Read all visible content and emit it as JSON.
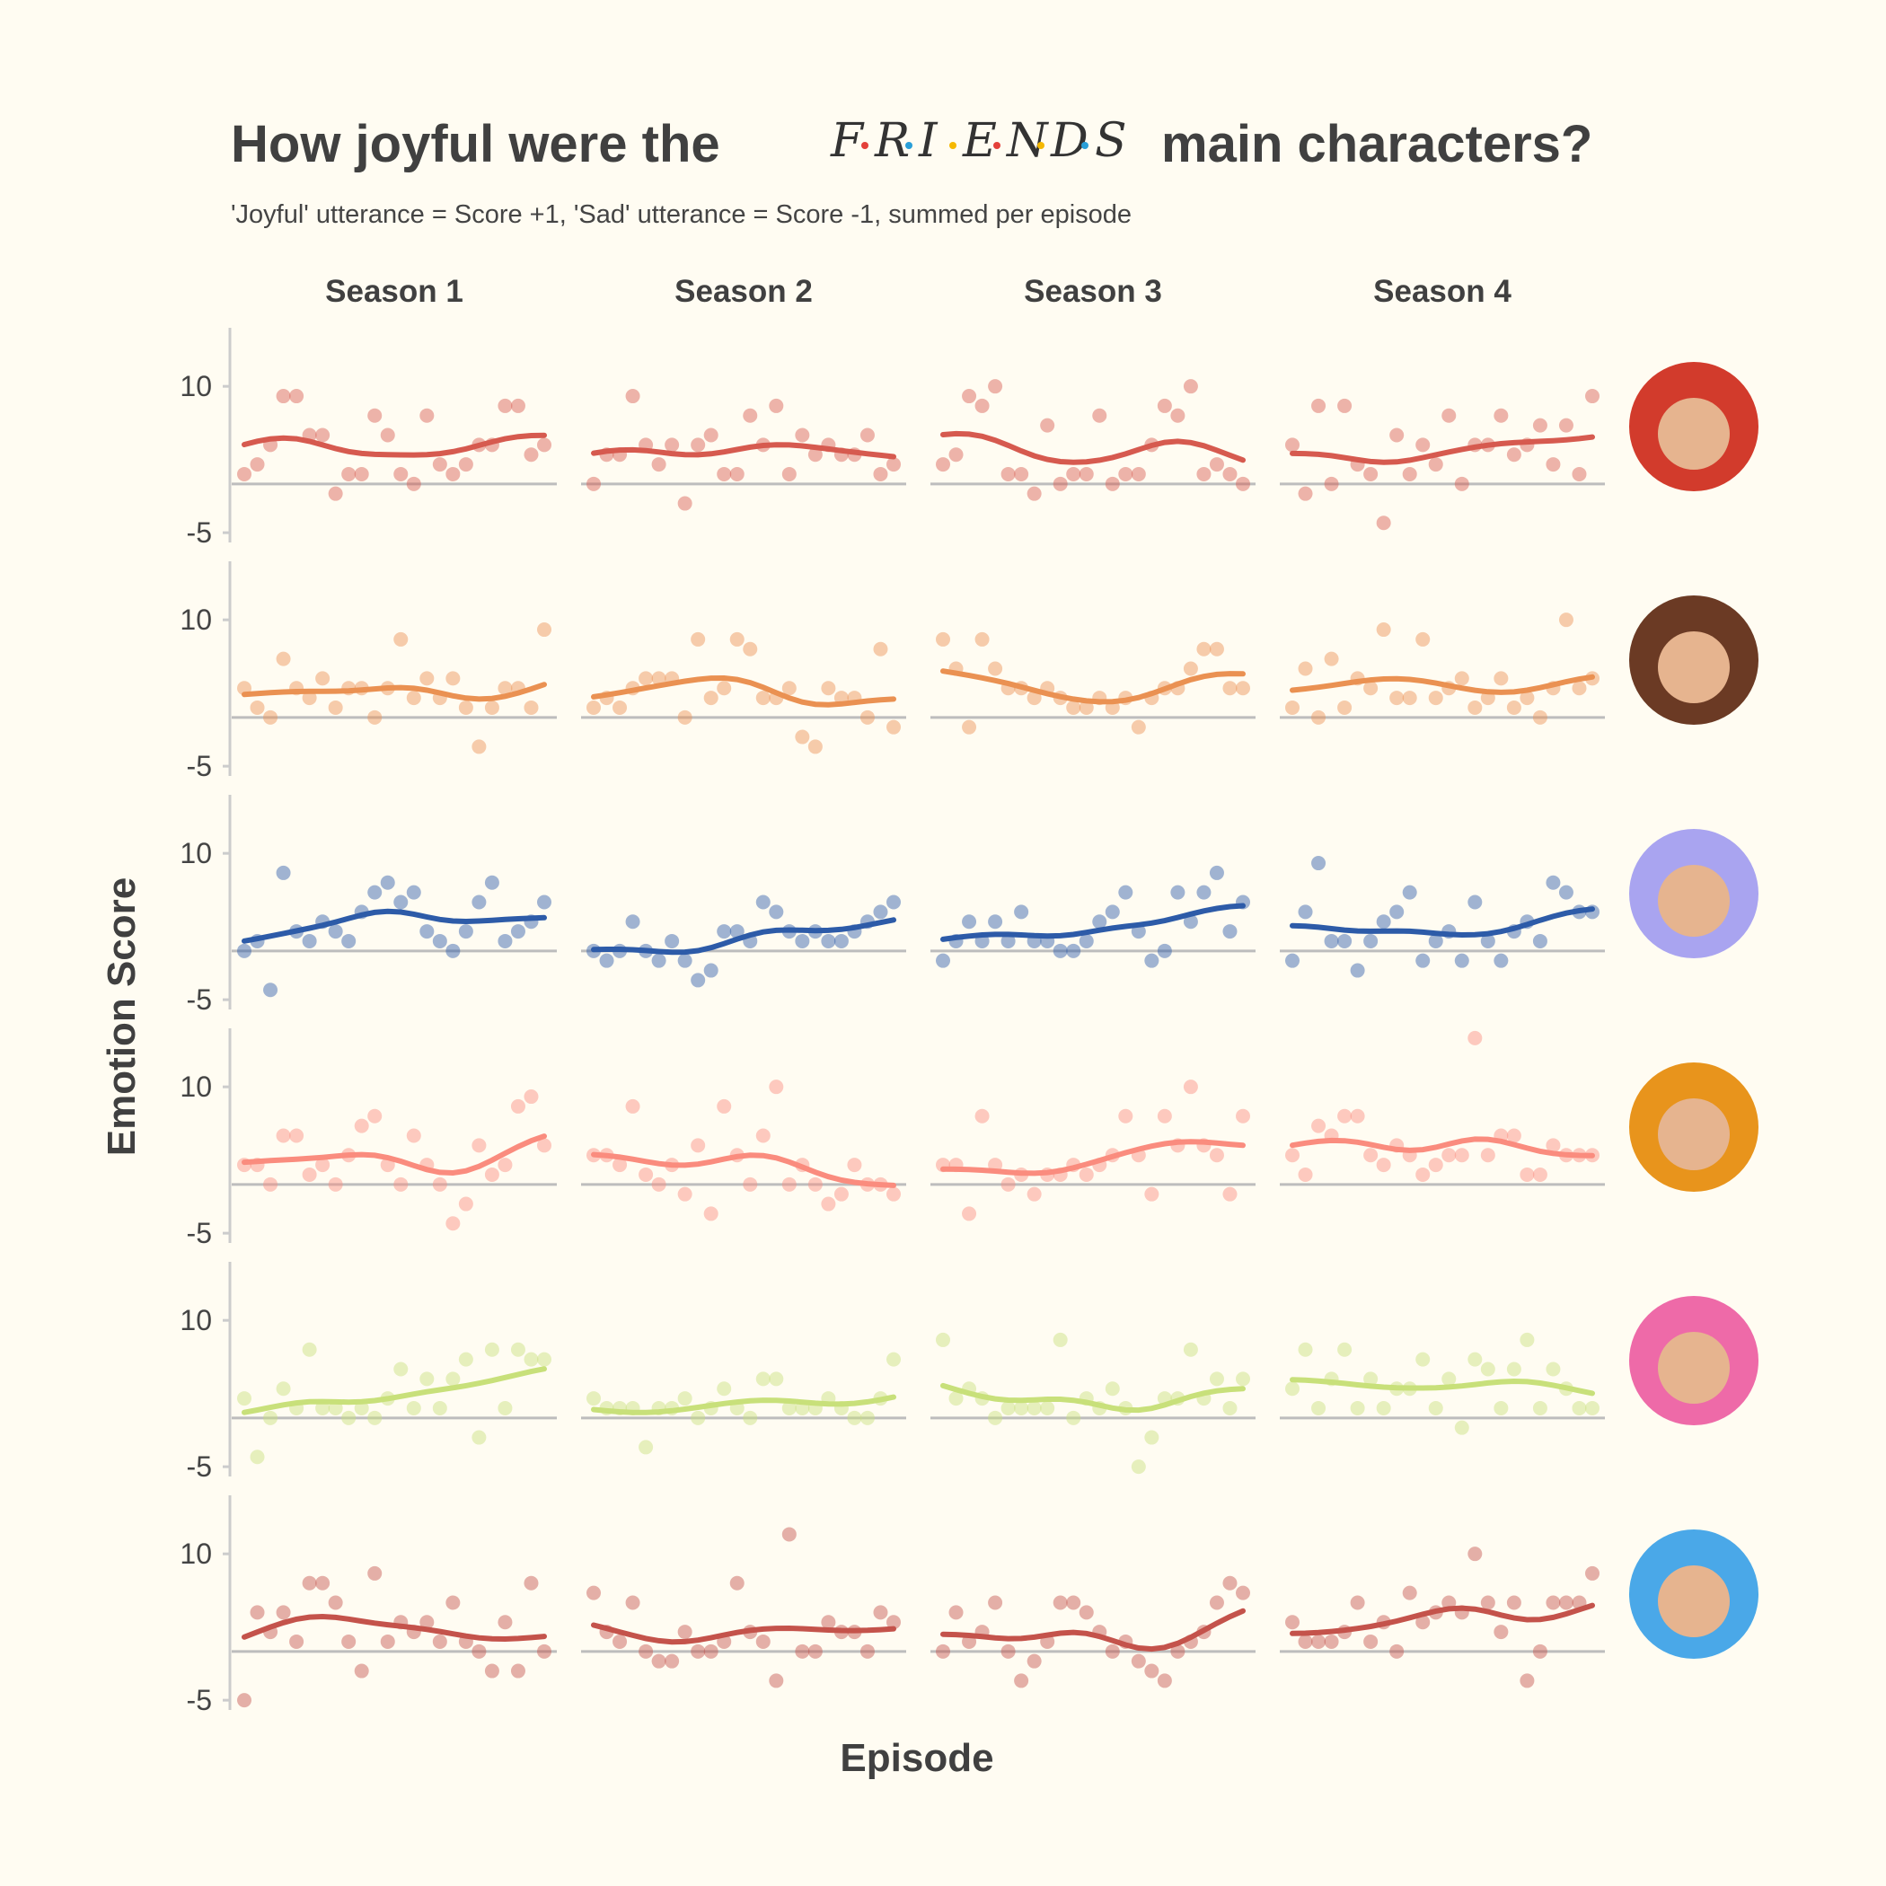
{
  "chart_data": {
    "type": "scatter",
    "title": "How joyful were the",
    "title_logo": [
      "F",
      "R",
      "I",
      "E",
      "N",
      "D",
      "S"
    ],
    "title_end": "main characters?",
    "subtitle": "'Joyful' utterance = Score +1, 'Sad' utterance = Score -1, summed per episode",
    "x_label": "Episode",
    "y_label": "Emotion Score",
    "facets": [
      "Season 1",
      "Season 2",
      "Season 3",
      "Season 4"
    ],
    "ylim": [
      -6,
      16
    ],
    "yticks": [
      -5,
      10
    ],
    "series": [
      {
        "color": "#d65a4f",
        "values": [
          [
            1,
            2,
            4,
            9,
            9,
            5,
            5,
            -1,
            1,
            1,
            7,
            5,
            1,
            0,
            7,
            2,
            1,
            2,
            4,
            4,
            8,
            8,
            3,
            4
          ],
          [
            0,
            3,
            3,
            9,
            4,
            2,
            4,
            -2,
            4,
            5,
            1,
            1,
            7,
            4,
            8,
            1,
            5,
            3,
            4,
            3,
            3,
            5,
            1,
            2
          ],
          [
            2,
            3,
            9,
            8,
            10,
            1,
            1,
            -1,
            6,
            0,
            1,
            1,
            7,
            0,
            1,
            1,
            4,
            8,
            7,
            10,
            1,
            2,
            1,
            0
          ],
          [
            4,
            -1,
            8,
            0,
            8,
            2,
            1,
            -4,
            5,
            1,
            4,
            2,
            7,
            0,
            4,
            4,
            7,
            3,
            4,
            6,
            2,
            6,
            1,
            9
          ]
        ]
      },
      {
        "color": "#ea9152",
        "values": [
          [
            3,
            1,
            0,
            6,
            3,
            2,
            4,
            1,
            3,
            3,
            0,
            3,
            8,
            2,
            4,
            2,
            4,
            1,
            -3,
            1,
            3,
            3,
            1,
            9
          ],
          [
            1,
            2,
            1,
            3,
            4,
            4,
            4,
            0,
            8,
            2,
            3,
            8,
            7,
            2,
            2,
            3,
            -2,
            -3,
            3,
            2,
            2,
            0,
            7,
            -1
          ],
          [
            8,
            5,
            -1,
            8,
            5,
            3,
            3,
            2,
            3,
            2,
            1,
            1,
            2,
            1,
            2,
            -1,
            2,
            3,
            3,
            5,
            7,
            7,
            3,
            3
          ],
          [
            1,
            5,
            0,
            6,
            1,
            4,
            3,
            9,
            2,
            2,
            8,
            2,
            3,
            4,
            1,
            2,
            4,
            1,
            2,
            0,
            3,
            10,
            3,
            4
          ]
        ]
      },
      {
        "color": "#2d5ba8",
        "values": [
          [
            0,
            1,
            -4,
            8,
            2,
            1,
            3,
            2,
            1,
            4,
            6,
            7,
            5,
            6,
            2,
            1,
            0,
            2,
            5,
            7,
            1,
            2,
            3,
            5
          ],
          [
            0,
            -1,
            0,
            3,
            0,
            -1,
            1,
            -1,
            -3,
            -2,
            2,
            2,
            1,
            5,
            4,
            2,
            1,
            2,
            1,
            1,
            2,
            3,
            4,
            5
          ],
          [
            -1,
            1,
            3,
            1,
            3,
            1,
            4,
            1,
            1,
            0,
            0,
            1,
            3,
            4,
            6,
            2,
            -1,
            0,
            6,
            3,
            6,
            8,
            2,
            5
          ],
          [
            -1,
            4,
            9,
            1,
            1,
            -2,
            1,
            3,
            4,
            6,
            -1,
            1,
            2,
            -1,
            5,
            1,
            -1,
            2,
            3,
            1,
            7,
            6,
            4,
            4
          ]
        ]
      },
      {
        "color": "#fa8c7e",
        "values": [
          [
            2,
            2,
            0,
            5,
            5,
            1,
            2,
            0,
            3,
            6,
            7,
            2,
            0,
            5,
            2,
            0,
            -4,
            -2,
            4,
            1,
            2,
            8,
            9,
            4
          ],
          [
            3,
            3,
            2,
            8,
            1,
            0,
            2,
            -1,
            4,
            -3,
            8,
            3,
            0,
            5,
            10,
            0,
            2,
            0,
            -2,
            -1,
            2,
            0,
            0,
            -1
          ],
          [
            2,
            2,
            -3,
            7,
            2,
            0,
            1,
            -1,
            1,
            1,
            2,
            1,
            2,
            3,
            7,
            3,
            -1,
            7,
            4,
            10,
            4,
            3,
            -1,
            7
          ],
          [
            3,
            1,
            6,
            5,
            7,
            7,
            3,
            2,
            4,
            3,
            1,
            2,
            3,
            3,
            15,
            3,
            5,
            5,
            1,
            1,
            4,
            3,
            3,
            3
          ]
        ]
      },
      {
        "color": "#c8e07a",
        "values": [
          [
            2,
            -4,
            0,
            3,
            1,
            7,
            1,
            1,
            0,
            1,
            0,
            2,
            5,
            1,
            4,
            1,
            4,
            6,
            -2,
            7,
            1,
            7,
            6,
            6
          ],
          [
            2,
            1,
            1,
            1,
            -3,
            1,
            1,
            2,
            0,
            1,
            3,
            1,
            0,
            4,
            4,
            1,
            1,
            1,
            2,
            1,
            0,
            0,
            2,
            6
          ],
          [
            8,
            2,
            3,
            2,
            0,
            1,
            1,
            1,
            1,
            8,
            0,
            2,
            1,
            3,
            1,
            -5,
            -2,
            2,
            2,
            7,
            2,
            4,
            1,
            4
          ],
          [
            3,
            7,
            1,
            4,
            7,
            1,
            4,
            1,
            3,
            3,
            6,
            1,
            4,
            -1,
            6,
            5,
            1,
            5,
            8,
            1,
            5,
            3,
            1,
            1
          ]
        ]
      },
      {
        "color": "#c4534b",
        "values": [
          [
            -5,
            4,
            2,
            4,
            1,
            7,
            7,
            5,
            1,
            -2,
            8,
            1,
            3,
            2,
            3,
            1,
            5,
            1,
            0,
            -2,
            3,
            -2,
            7,
            0
          ],
          [
            6,
            2,
            1,
            5,
            0,
            -1,
            -1,
            2,
            0,
            0,
            1,
            7,
            2,
            1,
            -3,
            12,
            0,
            0,
            3,
            2,
            2,
            0,
            4,
            3
          ],
          [
            0,
            4,
            1,
            2,
            5,
            0,
            -3,
            -1,
            1,
            5,
            5,
            4,
            2,
            0,
            1,
            -1,
            -2,
            -3,
            0,
            1,
            2,
            5,
            7,
            6
          ],
          [
            3,
            1,
            1,
            1,
            2,
            5,
            1,
            3,
            0,
            6,
            3,
            4,
            5,
            4,
            10,
            5,
            2,
            5,
            -3,
            0,
            5,
            5,
            5,
            8
          ]
        ]
      }
    ]
  }
}
